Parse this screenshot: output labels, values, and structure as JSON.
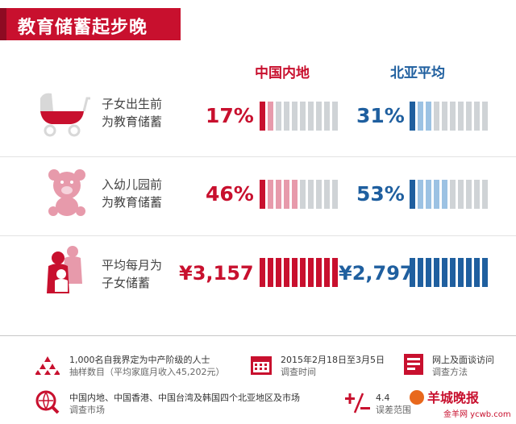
{
  "title": "教育储蓄起步晚",
  "headers": {
    "mainland": "中国内地",
    "north_asia": "北亚平均"
  },
  "colors": {
    "red": "#c8102e",
    "blue": "#1f5f9f",
    "grey": "#cfd3d6",
    "pink": "#e79aab",
    "light_blue": "#9cc2e3"
  },
  "rows": [
    {
      "label1": "子女出生前",
      "label2": "为教育储蓄",
      "mainland": "17%",
      "north_asia": "31%",
      "icon": "baby-stroller-icon"
    },
    {
      "label1": "入幼儿园前",
      "label2": "为教育储蓄",
      "mainland": "46%",
      "north_asia": "53%",
      "icon": "teddy-bear-icon"
    },
    {
      "label1": "平均每月为",
      "label2": "子女储蓄",
      "mainland": "¥3,157",
      "north_asia": "¥2,797",
      "icon": "family-icon"
    }
  ],
  "chart_data": {
    "type": "bar",
    "title": "教育储蓄起步晚",
    "categories": [
      "子女出生前为教育储蓄",
      "入幼儿园前为教育储蓄"
    ],
    "series": [
      {
        "name": "中国内地",
        "values": [
          17,
          46
        ]
      },
      {
        "name": "北亚平均",
        "values": [
          31,
          53
        ]
      }
    ],
    "monthly_savings": {
      "label": "平均每月为子女储蓄",
      "series": [
        {
          "name": "中国内地",
          "value": 3157,
          "unit": "¥"
        },
        {
          "name": "北亚平均",
          "value": 2797,
          "unit": "¥"
        }
      ]
    }
  },
  "footer": {
    "sample": {
      "line1": "1,000名自我界定为中产阶级的人士",
      "line2": "抽样数目（平均家庭月收入45,202元）",
      "icon": "people-stack-icon"
    },
    "period": {
      "line1": "2015年2月18日至3月5日",
      "line2": "调查时间",
      "icon": "calendar-icon"
    },
    "method": {
      "line1": "网上及面谈访问",
      "line2": "调查方法",
      "icon": "survey-form-icon"
    },
    "markets": {
      "line1": "中国内地、中国香港、中国台湾及韩国四个北亚地区及市场",
      "line2": "调查市场",
      "icon": "globe-search-icon"
    },
    "margin": {
      "line1": "4.4",
      "line2": "误差范围",
      "icon": "plus-minus-icon"
    }
  },
  "watermark": {
    "line1": "羊城晚报",
    "line2": "金羊网 ycwb.com"
  }
}
